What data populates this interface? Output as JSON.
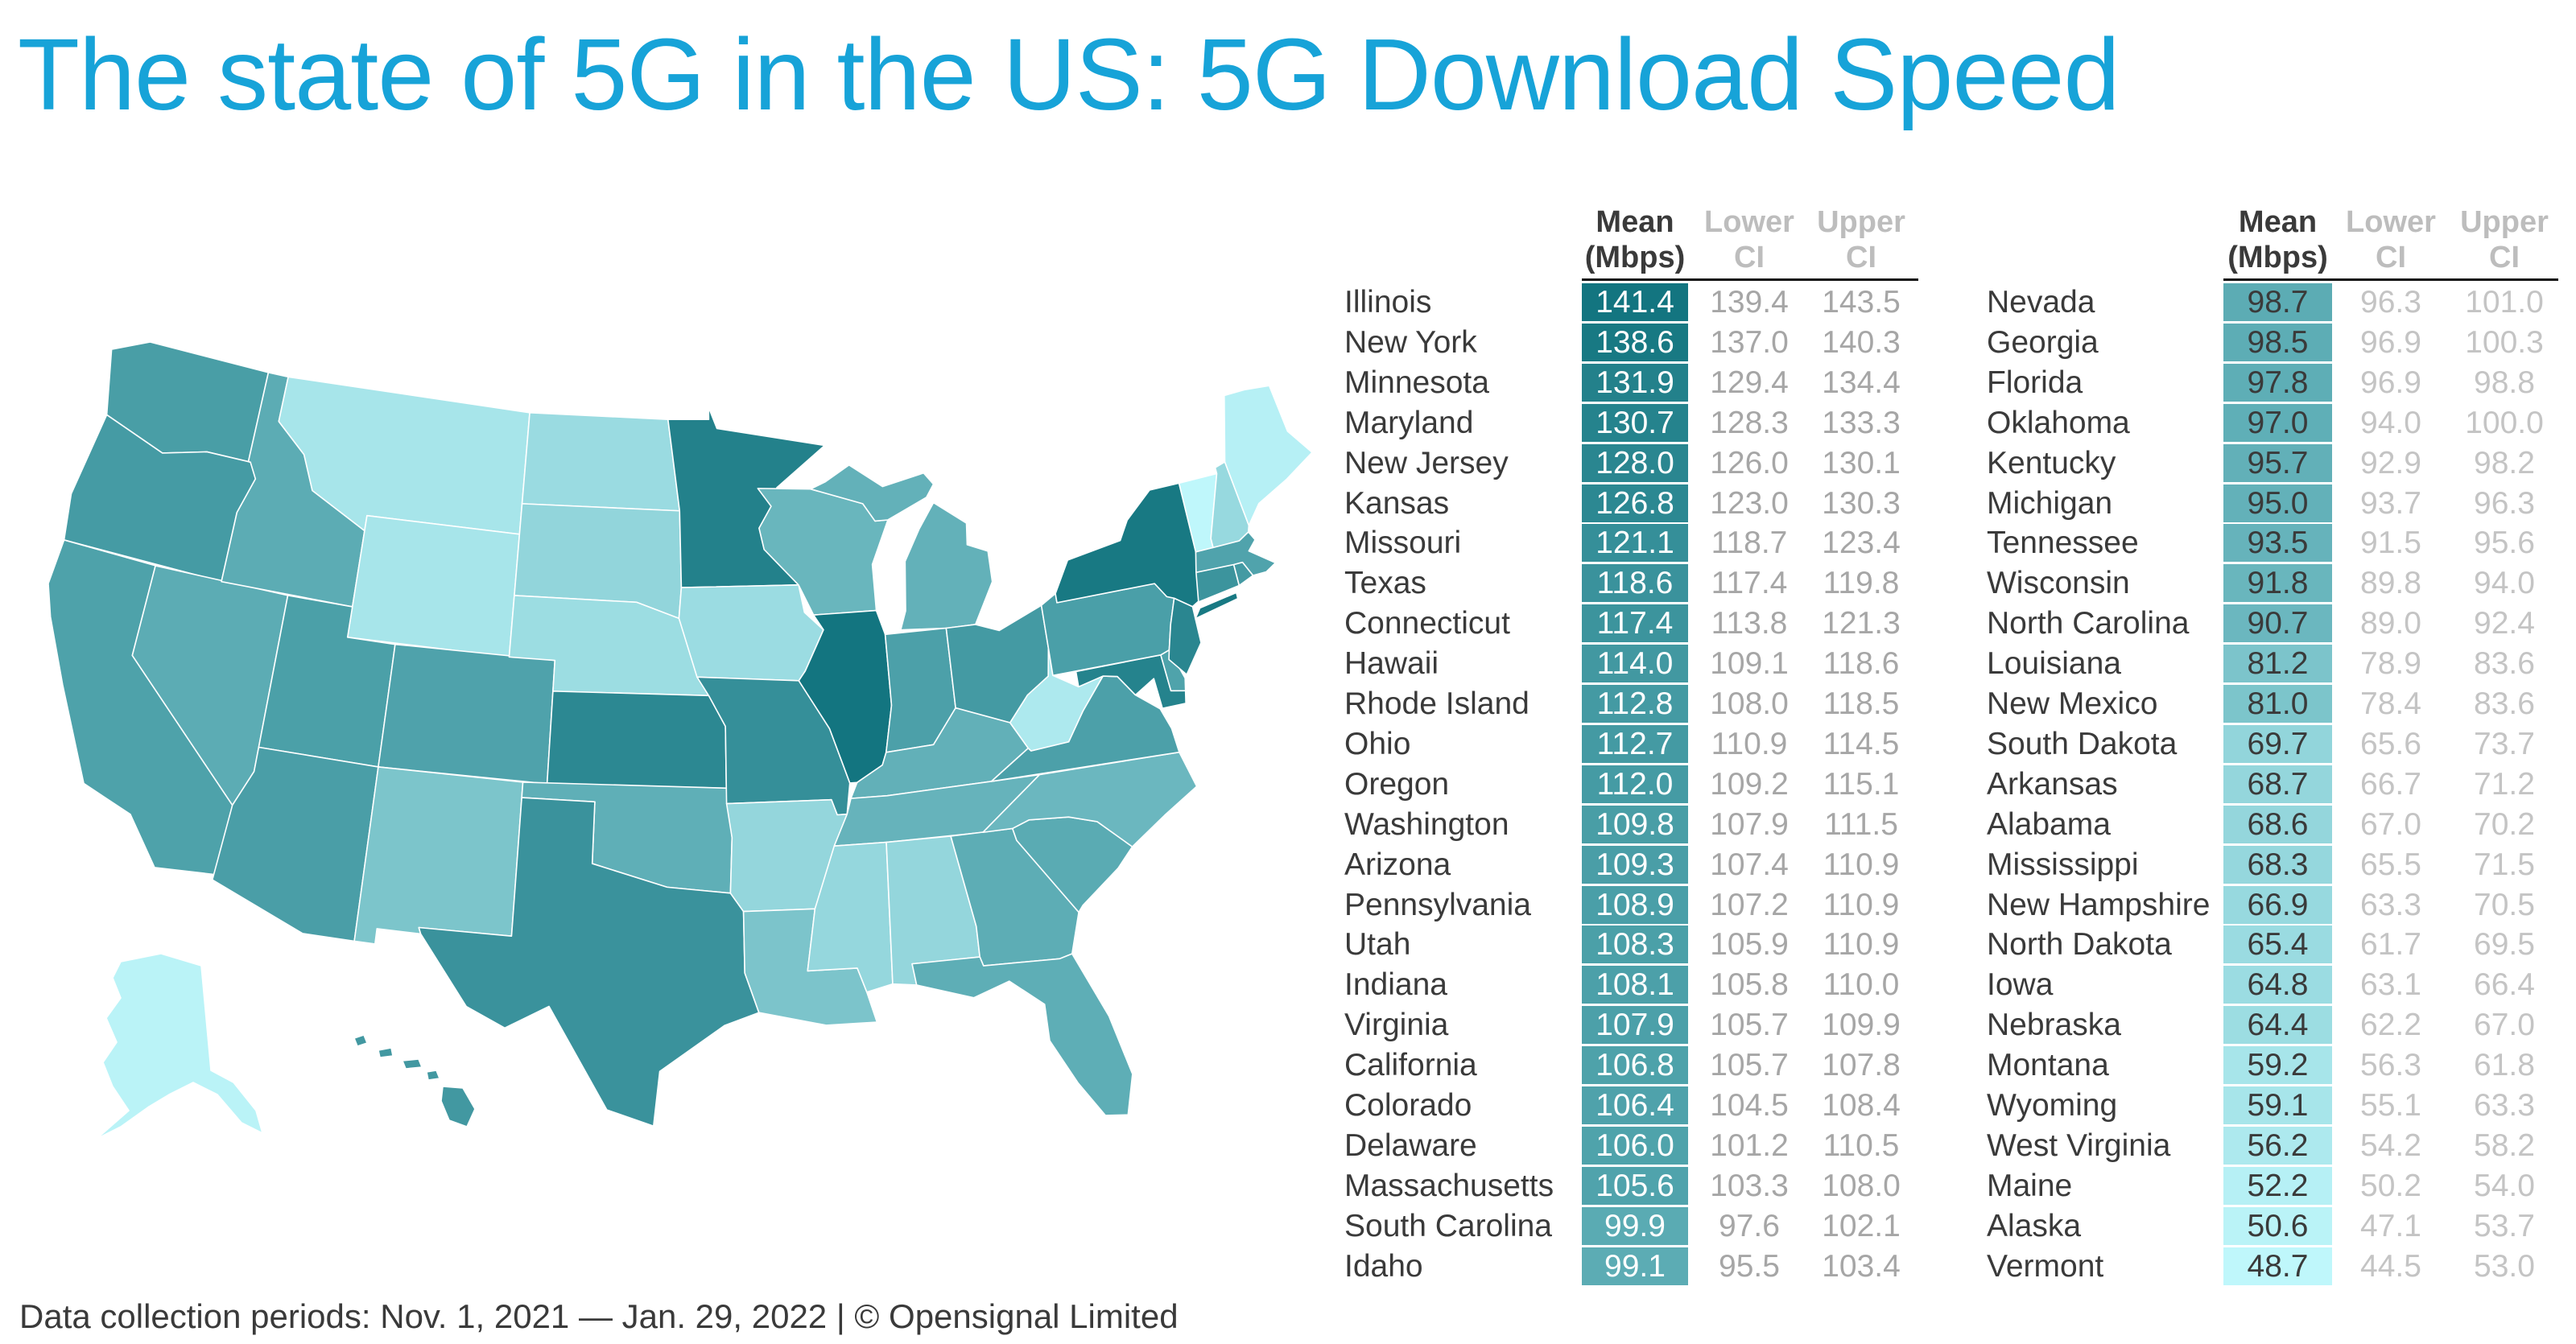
{
  "title": "The state of 5G in the US: 5G Download Speed",
  "footer": "Data collection periods: Nov. 1, 2021 — Jan. 29, 2022 | © Opensignal Limited",
  "colors": {
    "title": "#17a3d8",
    "scale_low": "#bff7fb",
    "scale_high": "#137580",
    "ci_left": "#a6a6a6",
    "ci_right": "#c4c4c4"
  },
  "chart_data": {
    "type": "table",
    "title": "The state of 5G in the US: 5G Download Speed",
    "map": "choropleth of US states shaded by mean 5G download speed",
    "columns": [
      "Mean (Mbps)",
      "Lower CI",
      "Upper CI"
    ],
    "headers": {
      "mean_1": "Mean",
      "mean_2": "(Mbps)",
      "lower_1": "Lower",
      "lower_2": "CI",
      "upper_1": "Upper",
      "upper_2": "CI"
    },
    "rows": [
      {
        "state": "Illinois",
        "mean": "141.4",
        "lower": "139.4",
        "upper": "143.5"
      },
      {
        "state": "New York",
        "mean": "138.6",
        "lower": "137.0",
        "upper": "140.3"
      },
      {
        "state": "Minnesota",
        "mean": "131.9",
        "lower": "129.4",
        "upper": "134.4"
      },
      {
        "state": "Maryland",
        "mean": "130.7",
        "lower": "128.3",
        "upper": "133.3"
      },
      {
        "state": "New Jersey",
        "mean": "128.0",
        "lower": "126.0",
        "upper": "130.1"
      },
      {
        "state": "Kansas",
        "mean": "126.8",
        "lower": "123.0",
        "upper": "130.3"
      },
      {
        "state": "Missouri",
        "mean": "121.1",
        "lower": "118.7",
        "upper": "123.4"
      },
      {
        "state": "Texas",
        "mean": "118.6",
        "lower": "117.4",
        "upper": "119.8"
      },
      {
        "state": "Connecticut",
        "mean": "117.4",
        "lower": "113.8",
        "upper": "121.3"
      },
      {
        "state": "Hawaii",
        "mean": "114.0",
        "lower": "109.1",
        "upper": "118.6"
      },
      {
        "state": "Rhode Island",
        "mean": "112.8",
        "lower": "108.0",
        "upper": "118.5"
      },
      {
        "state": "Ohio",
        "mean": "112.7",
        "lower": "110.9",
        "upper": "114.5"
      },
      {
        "state": "Oregon",
        "mean": "112.0",
        "lower": "109.2",
        "upper": "115.1"
      },
      {
        "state": "Washington",
        "mean": "109.8",
        "lower": "107.9",
        "upper": "111.5"
      },
      {
        "state": "Arizona",
        "mean": "109.3",
        "lower": "107.4",
        "upper": "110.9"
      },
      {
        "state": "Pennsylvania",
        "mean": "108.9",
        "lower": "107.2",
        "upper": "110.9"
      },
      {
        "state": "Utah",
        "mean": "108.3",
        "lower": "105.9",
        "upper": "110.9"
      },
      {
        "state": "Indiana",
        "mean": "108.1",
        "lower": "105.8",
        "upper": "110.0"
      },
      {
        "state": "Virginia",
        "mean": "107.9",
        "lower": "105.7",
        "upper": "109.9"
      },
      {
        "state": "California",
        "mean": "106.8",
        "lower": "105.7",
        "upper": "107.8"
      },
      {
        "state": "Colorado",
        "mean": "106.4",
        "lower": "104.5",
        "upper": "108.4"
      },
      {
        "state": "Delaware",
        "mean": "106.0",
        "lower": "101.2",
        "upper": "110.5"
      },
      {
        "state": "Massachusetts",
        "mean": "105.6",
        "lower": "103.3",
        "upper": "108.0"
      },
      {
        "state": "South Carolina",
        "mean": "99.9",
        "lower": "97.6",
        "upper": "102.1"
      },
      {
        "state": "Idaho",
        "mean": "99.1",
        "lower": "95.5",
        "upper": "103.4"
      },
      {
        "state": "Nevada",
        "mean": "98.7",
        "lower": "96.3",
        "upper": "101.0"
      },
      {
        "state": "Georgia",
        "mean": "98.5",
        "lower": "96.9",
        "upper": "100.3"
      },
      {
        "state": "Florida",
        "mean": "97.8",
        "lower": "96.9",
        "upper": "98.8"
      },
      {
        "state": "Oklahoma",
        "mean": "97.0",
        "lower": "94.0",
        "upper": "100.0"
      },
      {
        "state": "Kentucky",
        "mean": "95.7",
        "lower": "92.9",
        "upper": "98.2"
      },
      {
        "state": "Michigan",
        "mean": "95.0",
        "lower": "93.7",
        "upper": "96.3"
      },
      {
        "state": "Tennessee",
        "mean": "93.5",
        "lower": "91.5",
        "upper": "95.6"
      },
      {
        "state": "Wisconsin",
        "mean": "91.8",
        "lower": "89.8",
        "upper": "94.0"
      },
      {
        "state": "North Carolina",
        "mean": "90.7",
        "lower": "89.0",
        "upper": "92.4"
      },
      {
        "state": "Louisiana",
        "mean": "81.2",
        "lower": "78.9",
        "upper": "83.6"
      },
      {
        "state": "New Mexico",
        "mean": "81.0",
        "lower": "78.4",
        "upper": "83.6"
      },
      {
        "state": "South Dakota",
        "mean": "69.7",
        "lower": "65.6",
        "upper": "73.7"
      },
      {
        "state": "Arkansas",
        "mean": "68.7",
        "lower": "66.7",
        "upper": "71.2"
      },
      {
        "state": "Alabama",
        "mean": "68.6",
        "lower": "67.0",
        "upper": "70.2"
      },
      {
        "state": "Mississippi",
        "mean": "68.3",
        "lower": "65.5",
        "upper": "71.5"
      },
      {
        "state": "New Hampshire",
        "mean": "66.9",
        "lower": "63.3",
        "upper": "70.5"
      },
      {
        "state": "North Dakota",
        "mean": "65.4",
        "lower": "61.7",
        "upper": "69.5"
      },
      {
        "state": "Iowa",
        "mean": "64.8",
        "lower": "63.1",
        "upper": "66.4"
      },
      {
        "state": "Nebraska",
        "mean": "64.4",
        "lower": "62.2",
        "upper": "67.0"
      },
      {
        "state": "Montana",
        "mean": "59.2",
        "lower": "56.3",
        "upper": "61.8"
      },
      {
        "state": "Wyoming",
        "mean": "59.1",
        "lower": "55.1",
        "upper": "63.3"
      },
      {
        "state": "West Virginia",
        "mean": "56.2",
        "lower": "54.2",
        "upper": "58.2"
      },
      {
        "state": "Maine",
        "mean": "52.2",
        "lower": "50.2",
        "upper": "54.0"
      },
      {
        "state": "Alaska",
        "mean": "50.6",
        "lower": "47.1",
        "upper": "53.7"
      },
      {
        "state": "Vermont",
        "mean": "48.7",
        "lower": "44.5",
        "upper": "53.0"
      }
    ]
  }
}
